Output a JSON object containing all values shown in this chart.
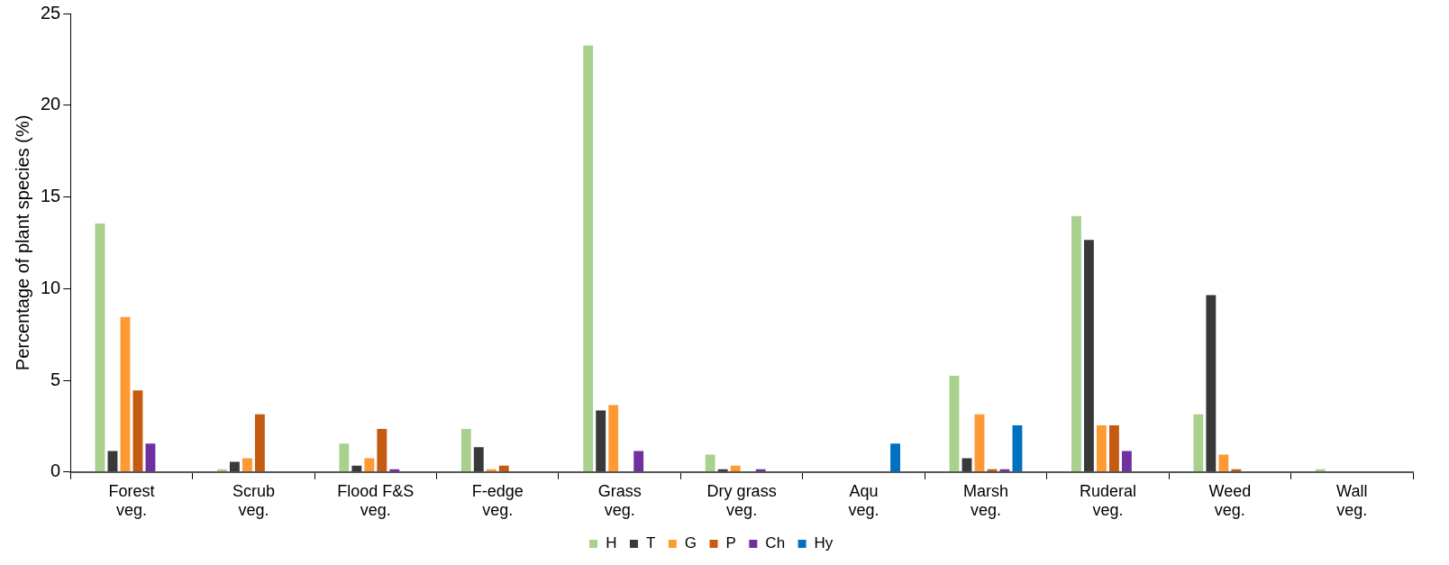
{
  "chart_data": {
    "type": "bar",
    "ylabel": "Percentage of plant species (%)",
    "categories": [
      "Forest veg.",
      "Scrub veg.",
      "Flood F&S veg.",
      "F-edge veg.",
      "Grass veg.",
      "Dry grass veg.",
      "Aqu veg.",
      "Marsh veg.",
      "Ruderal veg.",
      "Weed veg.",
      "Wall veg."
    ],
    "series": [
      {
        "name": "H",
        "color": "#a9d18e",
        "values": [
          13.6,
          0.2,
          1.6,
          2.4,
          23.3,
          1.0,
          null,
          5.3,
          14.0,
          3.2,
          0.2
        ]
      },
      {
        "name": "T",
        "color": "#393939",
        "values": [
          1.2,
          0.6,
          0.4,
          1.4,
          3.4,
          0.2,
          null,
          0.8,
          12.7,
          9.7,
          null
        ]
      },
      {
        "name": "G",
        "color": "#ff9933",
        "values": [
          8.5,
          0.8,
          0.8,
          0.2,
          3.7,
          0.4,
          null,
          3.2,
          2.6,
          1.0,
          null
        ]
      },
      {
        "name": "P",
        "color": "#c55a11",
        "values": [
          4.5,
          3.2,
          2.4,
          0.4,
          null,
          null,
          null,
          0.2,
          2.6,
          0.2,
          null
        ]
      },
      {
        "name": "Ch",
        "color": "#7030a0",
        "values": [
          1.6,
          null,
          0.2,
          null,
          1.2,
          0.2,
          null,
          0.2,
          1.2,
          null,
          null
        ]
      },
      {
        "name": "Hy",
        "color": "#0070c0",
        "values": [
          null,
          null,
          null,
          null,
          null,
          null,
          1.6,
          2.6,
          null,
          null,
          null
        ]
      }
    ],
    "ylim": [
      0,
      25
    ],
    "yticks": [
      0,
      5,
      10,
      15,
      20,
      25
    ],
    "grid": false,
    "legend": "bottom"
  }
}
